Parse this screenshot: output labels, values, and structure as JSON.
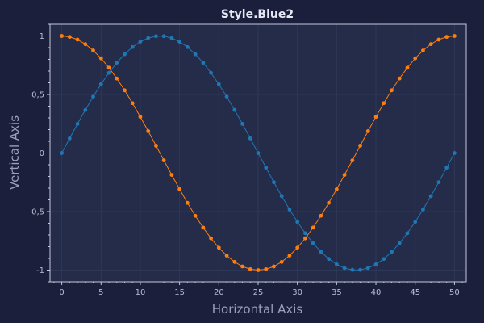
{
  "chart_data": {
    "type": "line",
    "title": "Style.Blue2",
    "xlabel": "Horizontal Axis",
    "ylabel": "Vertical Axis",
    "xlim": [
      -1.5,
      51.5
    ],
    "ylim": [
      -1.1,
      1.1
    ],
    "x_ticks": [
      0,
      5,
      10,
      15,
      20,
      25,
      30,
      35,
      40,
      45,
      50
    ],
    "x_tick_labels": [
      "0",
      "5",
      "10",
      "15",
      "20",
      "25",
      "30",
      "35",
      "40",
      "45",
      "50"
    ],
    "y_ticks": [
      1,
      0.5,
      0,
      -0.5,
      -1
    ],
    "y_tick_labels": [
      "1",
      "0,5",
      "0",
      "-0,5",
      "-1"
    ],
    "grid": true,
    "legend": "none",
    "colors": {
      "background": "#1b1f3b",
      "plot_background": "#252c4a",
      "grid": "#2f3758",
      "frame": "#c3c8da",
      "series": [
        "#1f77b4",
        "#ff7f0e"
      ]
    },
    "x": [
      0,
      1,
      2,
      3,
      4,
      5,
      6,
      7,
      8,
      9,
      10,
      11,
      12,
      13,
      14,
      15,
      16,
      17,
      18,
      19,
      20,
      21,
      22,
      23,
      24,
      25,
      26,
      27,
      28,
      29,
      30,
      31,
      32,
      33,
      34,
      35,
      36,
      37,
      38,
      39,
      40,
      41,
      42,
      43,
      44,
      45,
      46,
      47,
      48,
      49,
      50
    ],
    "series": [
      {
        "values": [
          0,
          0.125,
          0.249,
          0.368,
          0.482,
          0.588,
          0.685,
          0.771,
          0.844,
          0.905,
          0.951,
          0.982,
          0.998,
          0.998,
          0.982,
          0.951,
          0.905,
          0.844,
          0.771,
          0.685,
          0.588,
          0.482,
          0.368,
          0.249,
          0.125,
          0,
          -0.125,
          -0.249,
          -0.368,
          -0.482,
          -0.588,
          -0.685,
          -0.771,
          -0.844,
          -0.905,
          -0.951,
          -0.982,
          -0.998,
          -0.998,
          -0.982,
          -0.951,
          -0.905,
          -0.844,
          -0.771,
          -0.685,
          -0.588,
          -0.482,
          -0.368,
          -0.249,
          -0.125,
          0
        ]
      },
      {
        "values": [
          1,
          0.992,
          0.969,
          0.93,
          0.876,
          0.809,
          0.729,
          0.637,
          0.536,
          0.426,
          0.309,
          0.187,
          0.063,
          -0.063,
          -0.187,
          -0.309,
          -0.426,
          -0.536,
          -0.637,
          -0.729,
          -0.809,
          -0.876,
          -0.93,
          -0.969,
          -0.992,
          -1,
          -0.992,
          -0.969,
          -0.93,
          -0.876,
          -0.809,
          -0.729,
          -0.637,
          -0.536,
          -0.426,
          -0.309,
          -0.187,
          -0.063,
          0.063,
          0.187,
          0.309,
          0.426,
          0.536,
          0.637,
          0.729,
          0.809,
          0.876,
          0.93,
          0.969,
          0.992,
          1
        ]
      }
    ]
  }
}
